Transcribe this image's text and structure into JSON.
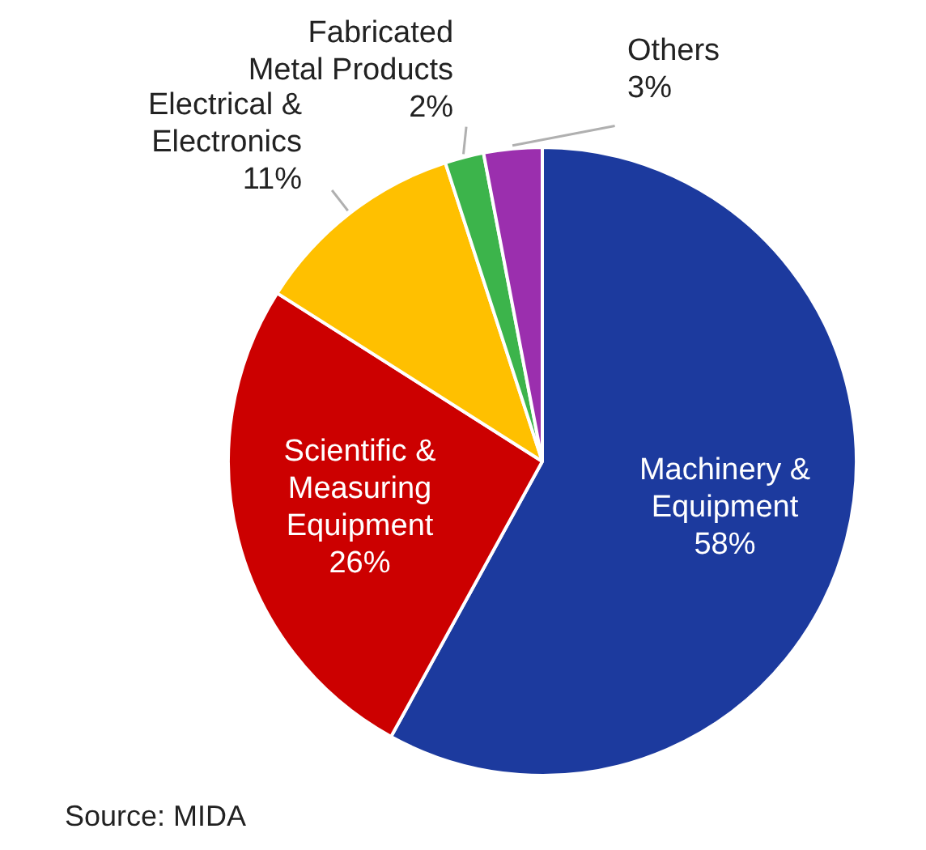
{
  "chart_data": {
    "type": "pie",
    "categories": [
      "Machinery & Equipment",
      "Scientific & Measuring Equipment",
      "Electrical & Electronics",
      "Fabricated Metal Products",
      "Others"
    ],
    "values": [
      58,
      26,
      11,
      2,
      3
    ],
    "value_labels": [
      "58%",
      "26%",
      "11%",
      "2%",
      "3%"
    ],
    "colors": [
      "#1c3a9e",
      "#cc0000",
      "#ffc000",
      "#3cb44b",
      "#9b2fae"
    ],
    "annotations": [
      "Source: MIDA"
    ]
  }
}
